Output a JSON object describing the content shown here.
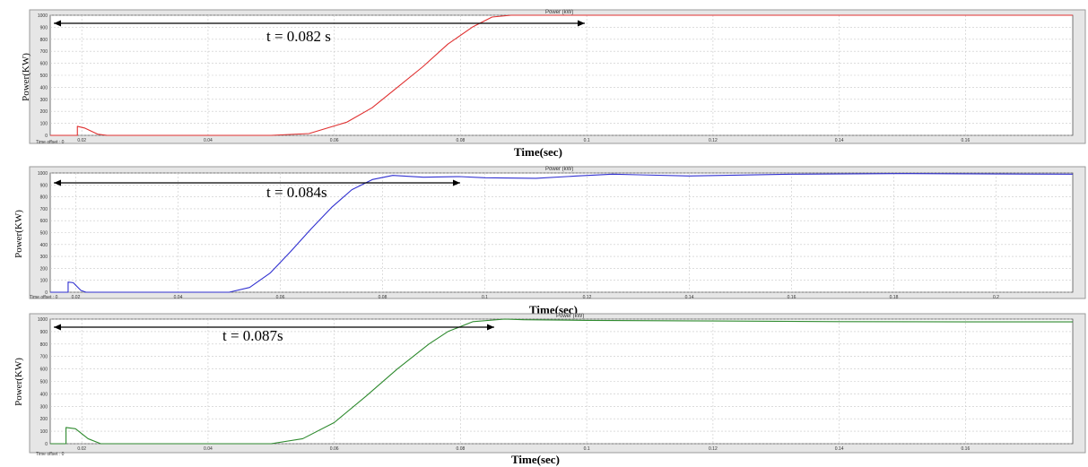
{
  "chart_data": [
    {
      "type": "line",
      "title": "Power (kW)",
      "ylabel": "Power(KW)",
      "xlabel": "Time(sec)",
      "annotation": "t = 0.082 s",
      "status": "Time offset : 0",
      "xlim": [
        0.015,
        0.177
      ],
      "ylim": [
        0,
        1000
      ],
      "xticks": [
        0.02,
        0.04,
        0.06,
        0.08,
        0.1,
        0.12,
        0.14,
        0.16
      ],
      "xtick_labels": [
        "0.02",
        "0.04",
        "0.06",
        "0.08",
        "0.1",
        "0.12",
        "0.14",
        "0.16"
      ],
      "yticks": [
        0,
        100,
        200,
        300,
        400,
        500,
        600,
        700,
        800,
        900,
        1000
      ],
      "ytick_labels": [
        "0",
        "100",
        "200",
        "300",
        "400",
        "500",
        "600",
        "700",
        "800",
        "900",
        "1000"
      ],
      "color": "#e03030",
      "series": [
        {
          "values": [
            [
              0.015,
              0
            ],
            [
              0.0193,
              0
            ],
            [
              0.0193,
              75
            ],
            [
              0.0205,
              60
            ],
            [
              0.0225,
              10
            ],
            [
              0.024,
              0
            ],
            [
              0.05,
              0
            ],
            [
              0.056,
              15
            ],
            [
              0.062,
              110
            ],
            [
              0.066,
              230
            ],
            [
              0.07,
              400
            ],
            [
              0.074,
              570
            ],
            [
              0.078,
              760
            ],
            [
              0.082,
              905
            ],
            [
              0.085,
              985
            ],
            [
              0.088,
              1000
            ],
            [
              0.1,
              1000
            ],
            [
              0.14,
              1000
            ],
            [
              0.177,
              1000
            ]
          ]
        }
      ]
    },
    {
      "type": "line",
      "title": "Power (kW)",
      "ylabel": "Power(KW)",
      "xlabel": "Time(sec)",
      "annotation": "t = 0.084s",
      "status": "Time offset : 0",
      "xlim": [
        0.015,
        0.215
      ],
      "ylim": [
        0,
        1000
      ],
      "xticks": [
        0.02,
        0.04,
        0.06,
        0.08,
        0.1,
        0.12,
        0.14,
        0.16,
        0.18,
        0.2
      ],
      "xtick_labels": [
        "0.02",
        "0.04",
        "0.06",
        "0.08",
        "0.1",
        "0.12",
        "0.14",
        "0.16",
        "0.18",
        "0.2"
      ],
      "yticks": [
        0,
        100,
        200,
        300,
        400,
        500,
        600,
        700,
        800,
        900,
        1000
      ],
      "ytick_labels": [
        "0",
        "100",
        "200",
        "300",
        "400",
        "500",
        "600",
        "700",
        "800",
        "900",
        "1000"
      ],
      "color": "#3030d0",
      "series": [
        {
          "values": [
            [
              0.015,
              0
            ],
            [
              0.0185,
              0
            ],
            [
              0.0185,
              85
            ],
            [
              0.0195,
              80
            ],
            [
              0.021,
              15
            ],
            [
              0.022,
              0
            ],
            [
              0.05,
              0
            ],
            [
              0.054,
              40
            ],
            [
              0.058,
              160
            ],
            [
              0.062,
              340
            ],
            [
              0.066,
              530
            ],
            [
              0.07,
              710
            ],
            [
              0.074,
              860
            ],
            [
              0.078,
              945
            ],
            [
              0.082,
              980
            ],
            [
              0.088,
              965
            ],
            [
              0.095,
              970
            ],
            [
              0.1,
              960
            ],
            [
              0.11,
              955
            ],
            [
              0.118,
              975
            ],
            [
              0.125,
              990
            ],
            [
              0.13,
              985
            ],
            [
              0.14,
              975
            ],
            [
              0.16,
              990
            ],
            [
              0.18,
              995
            ],
            [
              0.2,
              992
            ],
            [
              0.215,
              990
            ]
          ]
        }
      ]
    },
    {
      "type": "line",
      "title": "Power (kW)",
      "ylabel": "Power(KW)",
      "xlabel": "Time(sec)",
      "annotation": "t = 0.087s",
      "status": "Time offset : 0",
      "xlim": [
        0.015,
        0.177
      ],
      "ylim": [
        0,
        1000
      ],
      "xticks": [
        0.02,
        0.04,
        0.06,
        0.08,
        0.1,
        0.12,
        0.14,
        0.16
      ],
      "xtick_labels": [
        "0.02",
        "0.04",
        "0.06",
        "0.08",
        "0.1",
        "0.12",
        "0.14",
        "0.16"
      ],
      "yticks": [
        0,
        100,
        200,
        300,
        400,
        500,
        600,
        700,
        800,
        900,
        1000
      ],
      "ytick_labels": [
        "0",
        "100",
        "200",
        "300",
        "400",
        "500",
        "600",
        "700",
        "800",
        "900",
        "1000"
      ],
      "color": "#2e8a2e",
      "series": [
        {
          "values": [
            [
              0.015,
              0
            ],
            [
              0.0175,
              0
            ],
            [
              0.0175,
              130
            ],
            [
              0.019,
              120
            ],
            [
              0.021,
              40
            ],
            [
              0.023,
              0
            ],
            [
              0.05,
              0
            ],
            [
              0.055,
              40
            ],
            [
              0.06,
              170
            ],
            [
              0.065,
              380
            ],
            [
              0.07,
              600
            ],
            [
              0.075,
              800
            ],
            [
              0.078,
              900
            ],
            [
              0.082,
              980
            ],
            [
              0.087,
              1000
            ],
            [
              0.09,
              995
            ],
            [
              0.1,
              990
            ],
            [
              0.12,
              985
            ],
            [
              0.14,
              980
            ],
            [
              0.16,
              978
            ],
            [
              0.177,
              978
            ]
          ]
        }
      ]
    }
  ]
}
